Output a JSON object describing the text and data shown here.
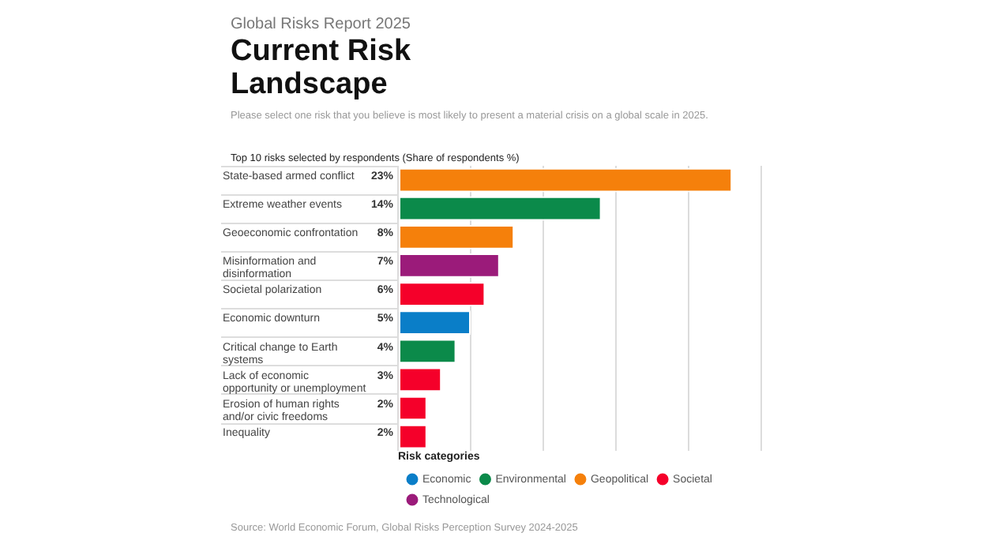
{
  "chart_data": {
    "type": "bar",
    "orientation": "horizontal",
    "subtitle": "Global Risks Report 2025",
    "title": "Current Risk Landscape",
    "annotations": [
      "Please select one risk that you believe is most likely to present a material crisis on a global scale in 2025.",
      "Top 10 risks selected by respondents (Share of respondents %)",
      "Source: World Economic Forum, Global Risks Perception Survey 2024-2025"
    ],
    "categories": [
      "State-based armed conflict",
      "Extreme weather events",
      "Geoeconomic confrontation",
      "Misinformation and disinformation",
      "Societal polarization",
      "Economic downturn",
      "Critical change to Earth systems",
      "Lack of economic opportunity or unemployment",
      "Erosion of human rights and/or civic freedoms",
      "Inequality"
    ],
    "series": [
      {
        "name": "Economic",
        "color": "#0a7ec8",
        "values": [
          null,
          null,
          null,
          null,
          null,
          5,
          null,
          null,
          null,
          null
        ],
        "value_labels": [
          null,
          null,
          null,
          null,
          null,
          "5%",
          null,
          null,
          null,
          null
        ]
      },
      {
        "name": "Environmental",
        "color": "#0b8a4a",
        "values": [
          null,
          14,
          null,
          null,
          null,
          null,
          4,
          null,
          null,
          null
        ],
        "value_labels": [
          null,
          "14%",
          null,
          null,
          null,
          null,
          "4%",
          null,
          null,
          null
        ]
      },
      {
        "name": "Geopolitical",
        "color": "#f5800b",
        "values": [
          23,
          null,
          8,
          null,
          null,
          null,
          null,
          null,
          null,
          null
        ],
        "value_labels": [
          "23%",
          null,
          "8%",
          null,
          null,
          null,
          null,
          null,
          null,
          null
        ]
      },
      {
        "name": "Societal",
        "color": "#f5002a",
        "values": [
          null,
          null,
          null,
          null,
          6,
          null,
          null,
          3,
          2,
          2
        ],
        "value_labels": [
          null,
          null,
          null,
          null,
          "6%",
          null,
          null,
          "3%",
          "2%",
          "2%"
        ]
      },
      {
        "name": "Technological",
        "color": "#9b1b7a",
        "values": [
          null,
          null,
          null,
          7,
          null,
          null,
          null,
          null,
          null,
          null
        ],
        "value_labels": [
          null,
          null,
          null,
          "7%",
          null,
          null,
          null,
          null,
          null,
          null
        ]
      }
    ],
    "grid": "x",
    "tick_labels": "y",
    "legend": "bottom",
    "legend_title": "Risk categories"
  }
}
